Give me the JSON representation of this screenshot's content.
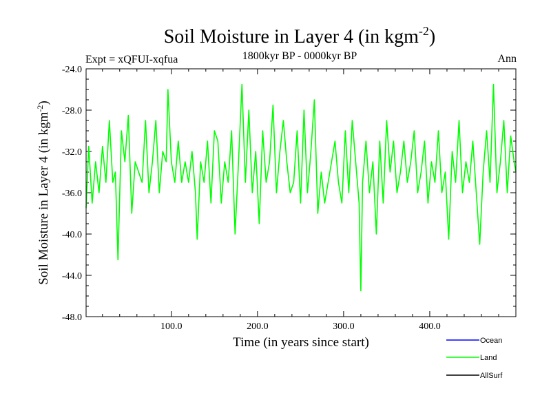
{
  "chart_data": {
    "type": "line",
    "title": {
      "main": "Soil Moisture in Layer 4 (in kgm",
      "sup": "-2",
      "close": ")"
    },
    "subtitle": "1800kyr BP - 0000kyr BP",
    "left_label": "Expt = xQFUI-xqfua",
    "right_label": "Ann",
    "xlabel": "Time (in years since start)",
    "ylabel": {
      "main": "Soil Moisture in Layer 4 (in kgm",
      "sup": "-2",
      "close": ")"
    },
    "xlim": [
      1,
      500
    ],
    "ylim": [
      -48,
      -24
    ],
    "x_ticks": [
      100,
      200,
      300,
      400
    ],
    "x_tick_labels": [
      "100.0",
      "200.0",
      "300.0",
      "400.0"
    ],
    "y_ticks": [
      -24,
      -28,
      -32,
      -36,
      -40,
      -44,
      -48
    ],
    "y_tick_labels": [
      "-24.0",
      "-28.0",
      "-32.0",
      "-36.0",
      "-40.0",
      "-44.0",
      "-48.0"
    ],
    "legend": [
      {
        "name": "Ocean",
        "color": "#0000ff"
      },
      {
        "name": "Land",
        "color": "#00ff00"
      },
      {
        "name": "AllSurf",
        "color": "#000000"
      }
    ],
    "series": [
      {
        "name": "Land",
        "color": "#00ff00",
        "x": [
          1,
          4,
          8,
          12,
          16,
          20,
          24,
          28,
          32,
          35,
          38,
          42,
          46,
          50,
          54,
          58,
          62,
          66,
          70,
          74,
          78,
          82,
          86,
          90,
          94,
          96,
          100,
          104,
          108,
          112,
          116,
          120,
          124,
          128,
          130,
          134,
          138,
          142,
          146,
          150,
          154,
          158,
          162,
          166,
          170,
          174,
          178,
          182,
          186,
          190,
          194,
          198,
          202,
          206,
          210,
          214,
          218,
          222,
          226,
          230,
          234,
          238,
          242,
          246,
          250,
          254,
          258,
          262,
          266,
          270,
          274,
          278,
          282,
          286,
          290,
          294,
          298,
          302,
          306,
          310,
          314,
          318,
          320,
          322,
          326,
          330,
          334,
          338,
          342,
          346,
          350,
          354,
          358,
          362,
          366,
          370,
          374,
          378,
          382,
          386,
          390,
          394,
          398,
          402,
          406,
          410,
          414,
          418,
          422,
          426,
          430,
          434,
          438,
          442,
          446,
          450,
          454,
          458,
          462,
          466,
          470,
          474,
          478,
          482,
          486,
          490,
          494,
          498,
          500
        ],
        "y": [
          -37.5,
          -31.5,
          -37,
          -33,
          -36,
          -31.5,
          -35,
          -29,
          -35,
          -34,
          -42.5,
          -30,
          -33,
          -28.5,
          -38,
          -33,
          -34,
          -35,
          -29,
          -36,
          -33,
          -29,
          -36,
          -32,
          -33,
          -26,
          -33,
          -35,
          -31,
          -35,
          -33,
          -35,
          -32,
          -36,
          -40.5,
          -33,
          -35,
          -31,
          -37,
          -30,
          -31,
          -37,
          -33,
          -35,
          -30,
          -40,
          -33,
          -25.5,
          -35,
          -28,
          -36,
          -32,
          -39,
          -30,
          -35,
          -33,
          -27.5,
          -36,
          -32,
          -29,
          -33,
          -36,
          -35,
          -30,
          -37,
          -28,
          -36,
          -32,
          -27,
          -38,
          -34,
          -37,
          -35,
          -33,
          -31,
          -35,
          -37,
          -30,
          -36,
          -29,
          -33,
          -37,
          -45.5,
          -35,
          -31,
          -36,
          -33,
          -40,
          -31,
          -37,
          -29,
          -34,
          -31,
          -36,
          -34,
          -31,
          -35,
          -33,
          -30,
          -36,
          -34,
          -31,
          -37,
          -33,
          -35,
          -30,
          -36,
          -34,
          -40.5,
          -32,
          -35,
          -29,
          -36,
          -33,
          -35,
          -31,
          -36,
          -41,
          -34,
          -30,
          -35,
          -25.5,
          -36,
          -33,
          -29,
          -36,
          -30.5,
          -33,
          -34
        ]
      }
    ]
  }
}
